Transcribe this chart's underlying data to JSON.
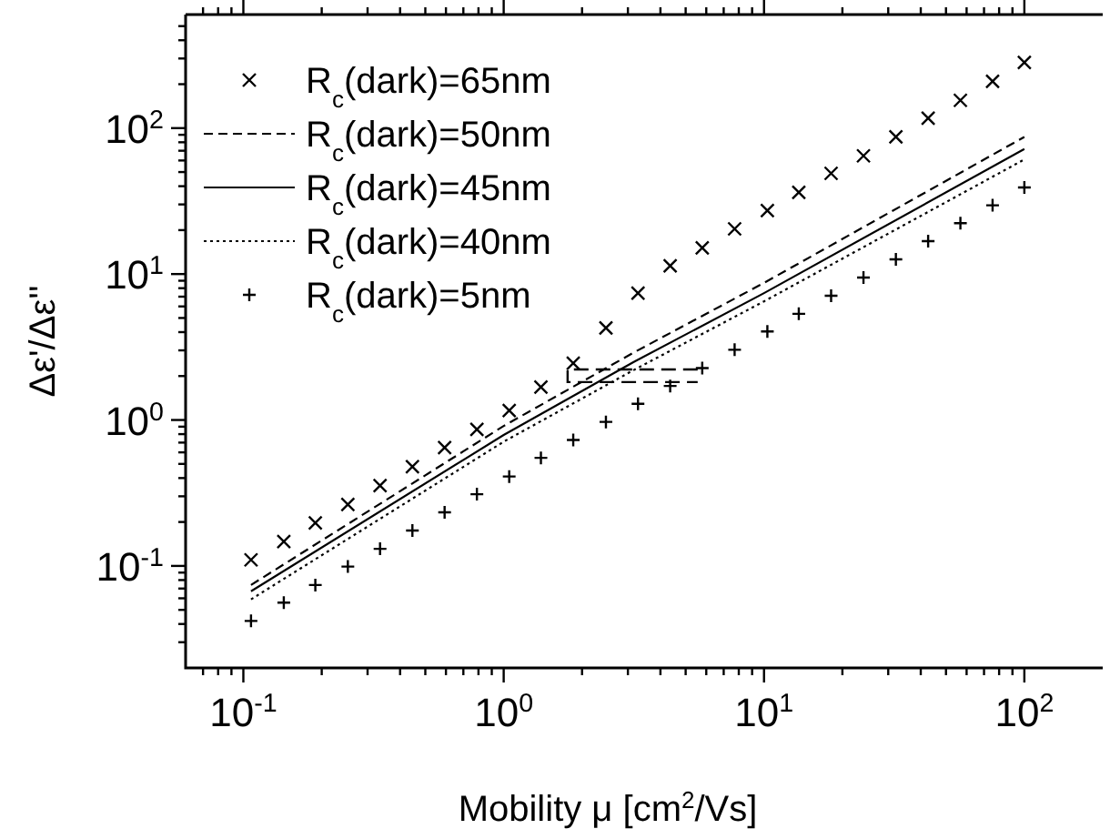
{
  "chart_data": {
    "type": "scatter",
    "xlabel": "Mobility μ [cm$^{2}$/Vs]",
    "ylabel": "Δε'/Δε''",
    "log": "xy",
    "legend": "top left",
    "grid": false,
    "xlim": [
      0.06,
      200
    ],
    "ylim": [
      0.02,
      600
    ],
    "xticks": [
      {
        "value": 0.07,
        "label": null
      },
      {
        "value": 0.08,
        "label": null
      },
      {
        "value": 0.09,
        "label": null
      },
      {
        "value": 0.1,
        "label": "10$^{-1}$"
      },
      {
        "value": 0.2,
        "label": null
      },
      {
        "value": 0.3,
        "label": null
      },
      {
        "value": 0.4,
        "label": null
      },
      {
        "value": 0.5,
        "label": null
      },
      {
        "value": 0.6,
        "label": null
      },
      {
        "value": 0.7,
        "label": null
      },
      {
        "value": 0.8,
        "label": null
      },
      {
        "value": 0.9,
        "label": null
      },
      {
        "value": 1,
        "label": "10$^{0}$"
      },
      {
        "value": 2,
        "label": null
      },
      {
        "value": 3,
        "label": null
      },
      {
        "value": 4,
        "label": null
      },
      {
        "value": 5,
        "label": null
      },
      {
        "value": 6,
        "label": null
      },
      {
        "value": 7,
        "label": null
      },
      {
        "value": 8,
        "label": null
      },
      {
        "value": 9,
        "label": null
      },
      {
        "value": 10,
        "label": "10$^{1}$"
      },
      {
        "value": 20,
        "label": null
      },
      {
        "value": 30,
        "label": null
      },
      {
        "value": 40,
        "label": null
      },
      {
        "value": 50,
        "label": null
      },
      {
        "value": 60,
        "label": null
      },
      {
        "value": 70,
        "label": null
      },
      {
        "value": 80,
        "label": null
      },
      {
        "value": 90,
        "label": null
      },
      {
        "value": 100,
        "label": "10$^{2}$"
      }
    ],
    "yticks": [
      {
        "value": 0.03,
        "label": null
      },
      {
        "value": 0.04,
        "label": null
      },
      {
        "value": 0.05,
        "label": null
      },
      {
        "value": 0.06,
        "label": null
      },
      {
        "value": 0.07,
        "label": null
      },
      {
        "value": 0.08,
        "label": null
      },
      {
        "value": 0.09,
        "label": null
      },
      {
        "value": 0.1,
        "label": "10$^{-1}$"
      },
      {
        "value": 0.2,
        "label": null
      },
      {
        "value": 0.3,
        "label": null
      },
      {
        "value": 0.4,
        "label": null
      },
      {
        "value": 0.5,
        "label": null
      },
      {
        "value": 0.6,
        "label": null
      },
      {
        "value": 0.7,
        "label": null
      },
      {
        "value": 0.8,
        "label": null
      },
      {
        "value": 0.9,
        "label": null
      },
      {
        "value": 1,
        "label": "10$^{0}$"
      },
      {
        "value": 2,
        "label": null
      },
      {
        "value": 3,
        "label": null
      },
      {
        "value": 4,
        "label": null
      },
      {
        "value": 5,
        "label": null
      },
      {
        "value": 6,
        "label": null
      },
      {
        "value": 7,
        "label": null
      },
      {
        "value": 8,
        "label": null
      },
      {
        "value": 9,
        "label": null
      },
      {
        "value": 10,
        "label": "10$^{1}$"
      },
      {
        "value": 20,
        "label": null
      },
      {
        "value": 30,
        "label": null
      },
      {
        "value": 40,
        "label": null
      },
      {
        "value": 50,
        "label": null
      },
      {
        "value": 60,
        "label": null
      },
      {
        "value": 70,
        "label": null
      },
      {
        "value": 80,
        "label": null
      },
      {
        "value": 90,
        "label": null
      },
      {
        "value": 100,
        "label": "10$^{2}$"
      },
      {
        "value": 200,
        "label": null
      },
      {
        "value": 300,
        "label": null
      },
      {
        "value": 400,
        "label": null
      },
      {
        "value": 500,
        "label": null
      }
    ],
    "series": [
      {
        "name": "R$_{c}$(dark)=65nm",
        "marker": "x",
        "color": "#000000",
        "x": [
          0.107,
          0.143,
          0.189,
          0.252,
          0.335,
          0.446,
          0.593,
          0.789,
          1.05,
          1.39,
          1.85,
          2.47,
          3.28,
          4.36,
          5.79,
          7.71,
          10.3,
          13.6,
          18.1,
          24.1,
          32.1,
          42.7,
          56.8,
          75.5,
          100
        ],
        "values": [
          0.11,
          0.147,
          0.197,
          0.264,
          0.355,
          0.479,
          0.646,
          0.861,
          1.16,
          1.68,
          2.45,
          4.27,
          7.41,
          11.4,
          15.1,
          20.4,
          27.2,
          36.3,
          49,
          64.6,
          87.1,
          117,
          155,
          209,
          282
        ]
      },
      {
        "name": "R$_{c}$(dark)=50nm",
        "type": "line",
        "line_style": "dashed",
        "color": "#000000",
        "x": [
          0.107,
          1,
          3.16,
          10,
          100
        ],
        "values": [
          0.074,
          0.91,
          2.9,
          8.7,
          87
        ]
      },
      {
        "name": "R$_{c}$(dark)=45nm",
        "type": "line",
        "line_style": "solid",
        "color": "#000000",
        "x": [
          0.107,
          1,
          3.16,
          10,
          100
        ],
        "values": [
          0.067,
          0.79,
          2.5,
          7.4,
          72
        ]
      },
      {
        "name": "R$_{c}$(dark)=40nm",
        "type": "line",
        "line_style": "dotted",
        "color": "#000000",
        "x": [
          0.107,
          1,
          3.16,
          10,
          100
        ],
        "values": [
          0.059,
          0.71,
          2.2,
          6.5,
          61
        ]
      },
      {
        "name": "R$_{c}$(dark)=5nm",
        "marker": "cross",
        "color": "#000000",
        "x": [
          0.107,
          0.143,
          0.189,
          0.252,
          0.335,
          0.446,
          0.593,
          0.789,
          1.05,
          1.39,
          1.85,
          2.47,
          3.28,
          4.36,
          5.79,
          7.71,
          10.3,
          13.6,
          18.1,
          24.1,
          32.1,
          42.7,
          56.8,
          75.5,
          100
        ],
        "values": [
          0.042,
          0.056,
          0.074,
          0.099,
          0.131,
          0.175,
          0.233,
          0.31,
          0.41,
          0.55,
          0.73,
          0.97,
          1.29,
          1.71,
          2.27,
          3.03,
          4.04,
          5.34,
          7.1,
          9.46,
          12.6,
          16.8,
          22.3,
          29.6,
          39.2
        ]
      }
    ]
  }
}
